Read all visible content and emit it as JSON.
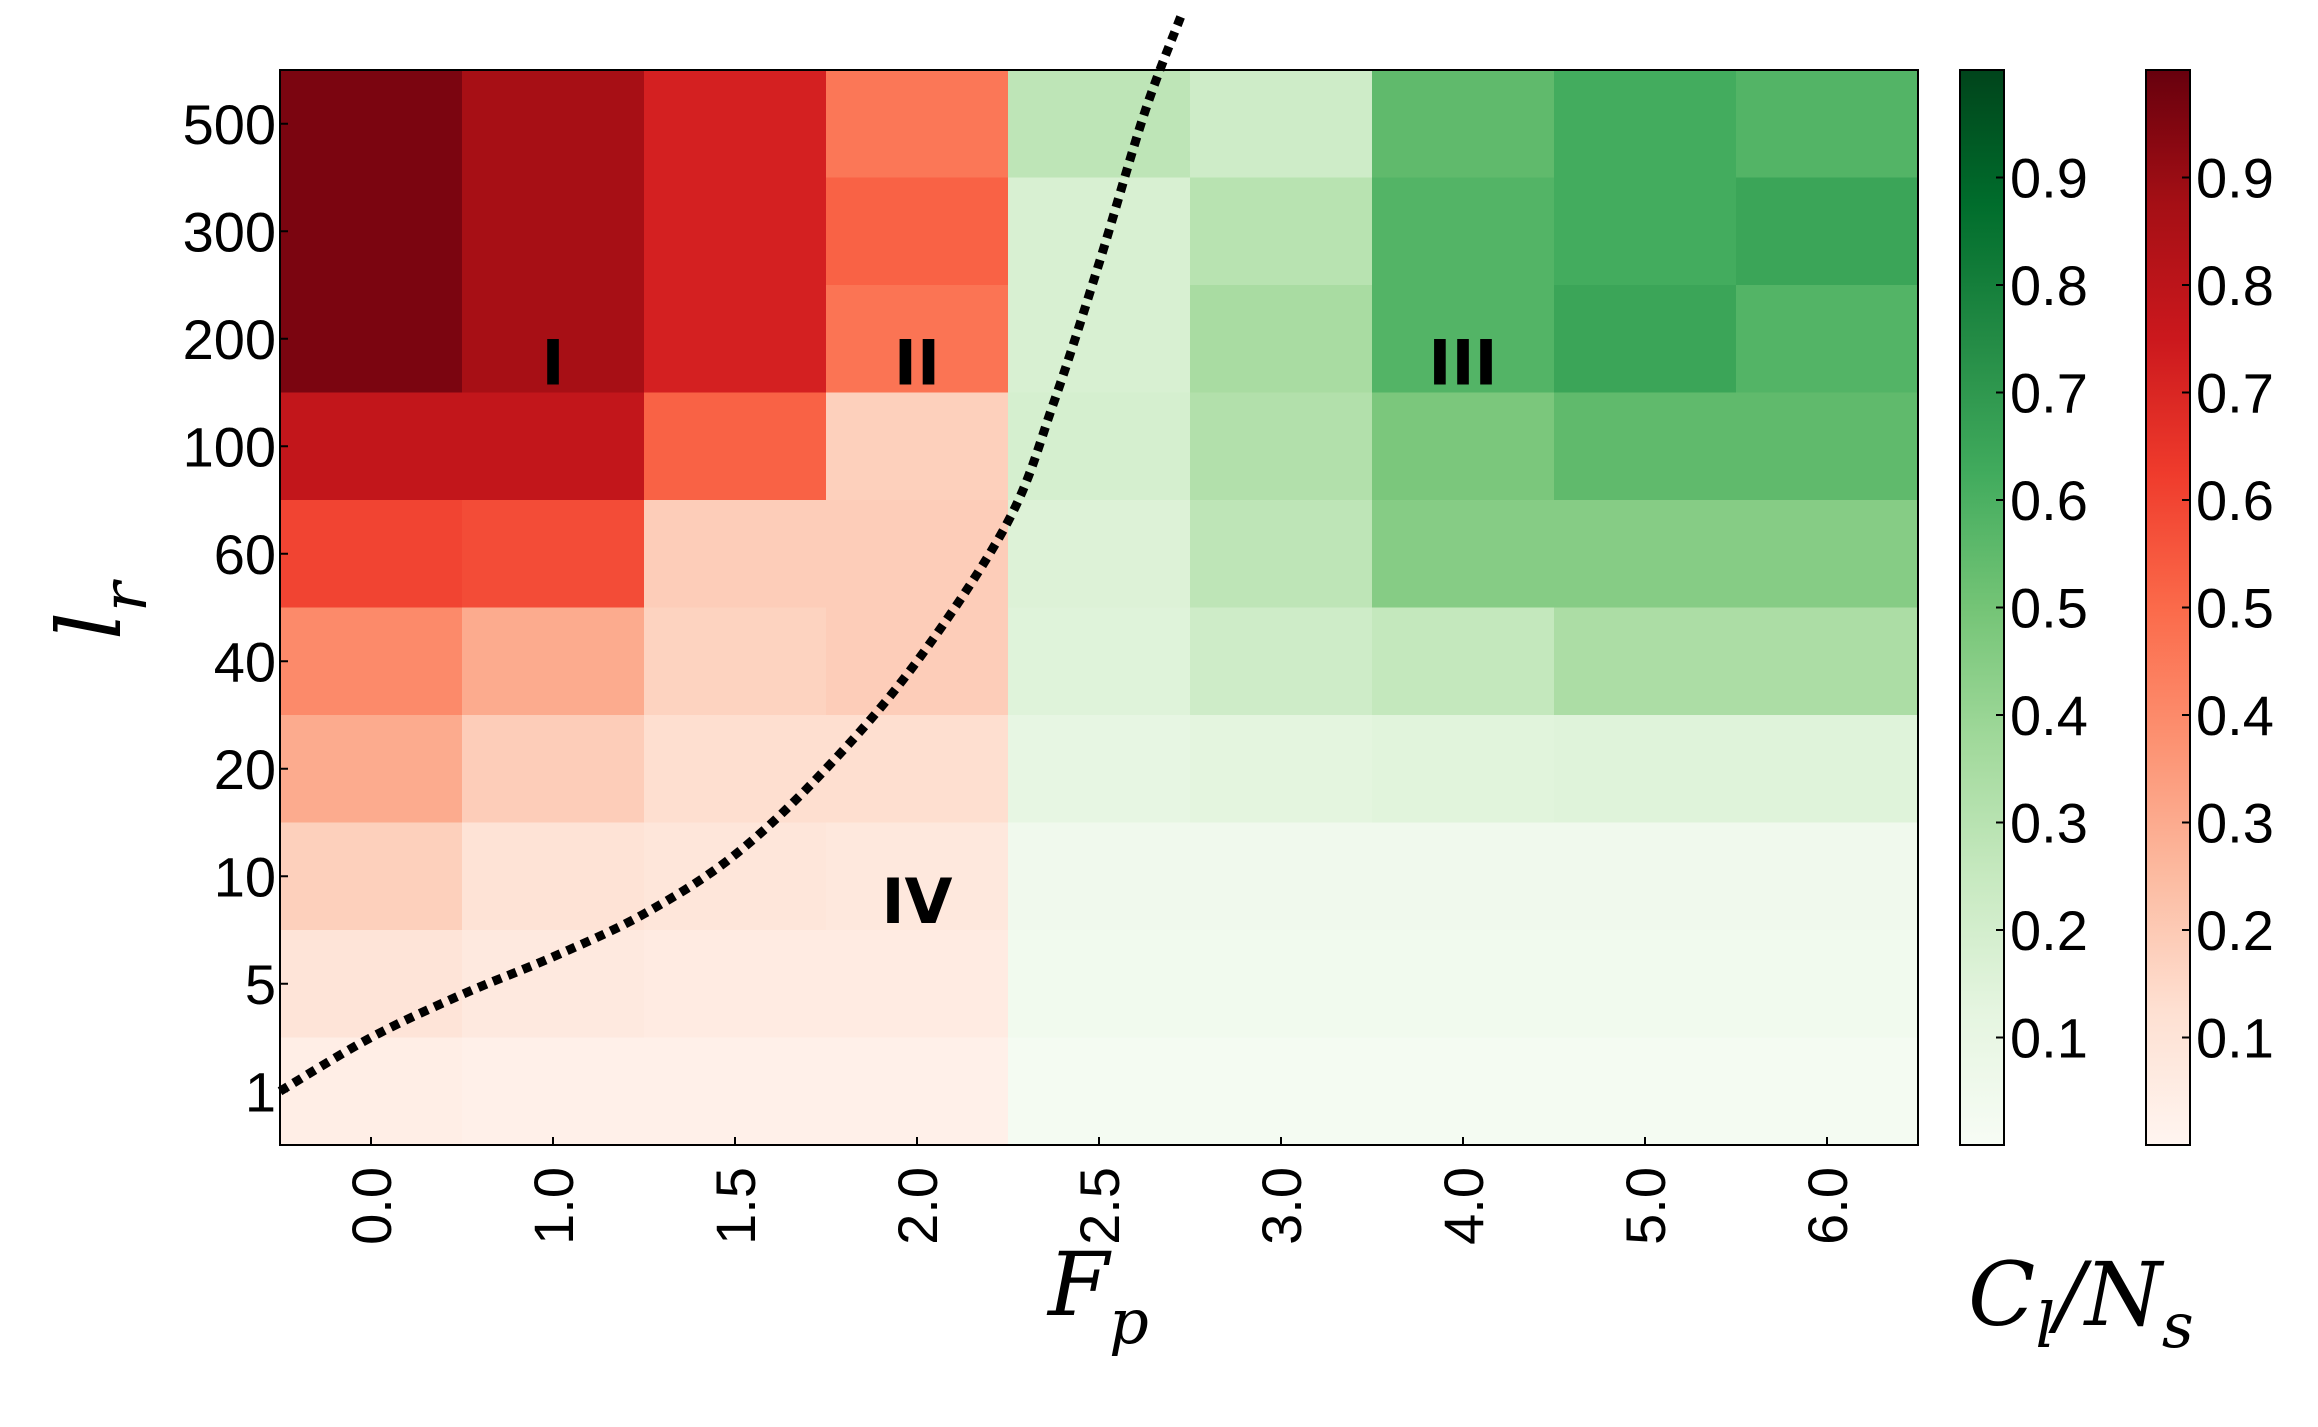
{
  "chart_data": {
    "type": "heatmap",
    "x": {
      "label": "F",
      "label_sub": "p",
      "ticks": [
        "0.0",
        "1.0",
        "1.5",
        "2.0",
        "2.5",
        "3.0",
        "4.0",
        "5.0",
        "6.0"
      ]
    },
    "y": {
      "label": "l",
      "label_sub": "r",
      "ticks": [
        "1",
        "5",
        "10",
        "20",
        "40",
        "60",
        "100",
        "200",
        "300",
        "500"
      ]
    },
    "colorbar_label": "C_l/N_s",
    "colorbar_label_main": "C",
    "colorbar_label_sub1": "l",
    "colorbar_label_sep": "/N",
    "colorbar_label_sub2": "s",
    "colorbars": [
      {
        "name": "green",
        "colormap": "Greens",
        "ticks": [
          "0.1",
          "0.2",
          "0.3",
          "0.4",
          "0.5",
          "0.6",
          "0.7",
          "0.8",
          "0.9"
        ],
        "range": [
          0,
          1
        ]
      },
      {
        "name": "red",
        "colormap": "Reds",
        "ticks": [
          "0.1",
          "0.2",
          "0.3",
          "0.4",
          "0.5",
          "0.6",
          "0.7",
          "0.8",
          "0.9"
        ],
        "range": [
          0,
          1
        ]
      }
    ],
    "cells_colormap_by_column": [
      "red",
      "red",
      "red",
      "red",
      "green",
      "green",
      "green",
      "green",
      "green"
    ],
    "values_top_to_bottom": [
      [
        0.96,
        0.87,
        0.72,
        0.46,
        0.28,
        0.22,
        0.55,
        0.62,
        0.58
      ],
      [
        0.96,
        0.87,
        0.72,
        0.52,
        0.18,
        0.3,
        0.58,
        0.62,
        0.65
      ],
      [
        0.96,
        0.87,
        0.72,
        0.47,
        0.18,
        0.35,
        0.58,
        0.65,
        0.58
      ],
      [
        0.78,
        0.78,
        0.52,
        0.18,
        0.19,
        0.32,
        0.48,
        0.55,
        0.55
      ],
      [
        0.6,
        0.58,
        0.19,
        0.19,
        0.16,
        0.28,
        0.45,
        0.45,
        0.45
      ],
      [
        0.4,
        0.3,
        0.17,
        0.19,
        0.15,
        0.22,
        0.26,
        0.34,
        0.34
      ],
      [
        0.3,
        0.19,
        0.13,
        0.13,
        0.11,
        0.13,
        0.14,
        0.15,
        0.15
      ],
      [
        0.18,
        0.11,
        0.09,
        0.08,
        0.05,
        0.05,
        0.05,
        0.05,
        0.05
      ],
      [
        0.1,
        0.07,
        0.06,
        0.06,
        0.04,
        0.04,
        0.04,
        0.04,
        0.04
      ],
      [
        0.04,
        0.03,
        0.03,
        0.03,
        0.02,
        0.02,
        0.02,
        0.02,
        0.02
      ]
    ],
    "boundary_curve": {
      "style": "dotted",
      "points_x_y": [
        [
          -0.5,
          0.5
        ],
        [
          0.0,
          1.0
        ],
        [
          0.5,
          1.4
        ],
        [
          1.0,
          1.75
        ],
        [
          1.5,
          2.15
        ],
        [
          2.0,
          2.7
        ],
        [
          2.5,
          3.5
        ],
        [
          3.0,
          4.5
        ],
        [
          3.5,
          5.8
        ],
        [
          3.75,
          6.9
        ],
        [
          4.0,
          8.2
        ],
        [
          4.25,
          9.6
        ],
        [
          4.45,
          10.5
        ]
      ]
    },
    "annotations": [
      {
        "text": "I",
        "x": 1.0,
        "y": 7.28
      },
      {
        "text": "II",
        "x": 3.0,
        "y": 7.28
      },
      {
        "text": "III",
        "x": 6.0,
        "y": 7.28
      },
      {
        "text": "IV",
        "x": 3.0,
        "y": 2.27
      }
    ]
  }
}
